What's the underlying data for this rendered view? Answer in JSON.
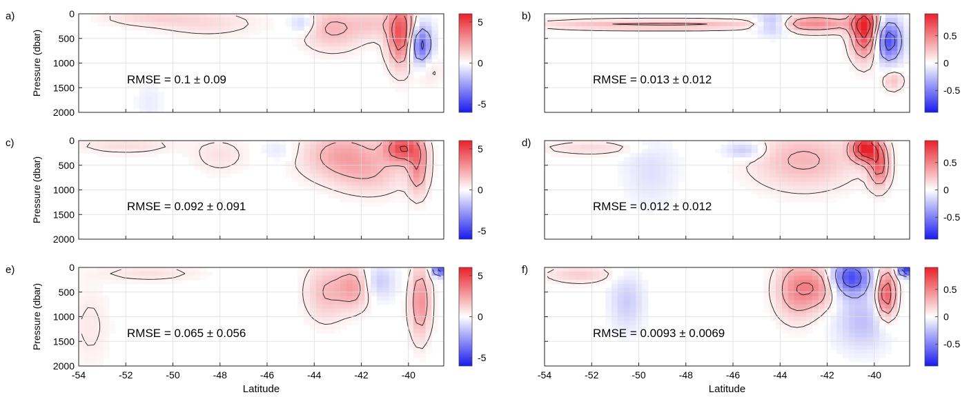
{
  "colors": {
    "positive": "#e8202a",
    "negative": "#1a1aef",
    "neutral": "#ffffff",
    "contour": "#1a1a1a",
    "grid": "#dcdcdc"
  },
  "chart_data": [
    {
      "type": "heatmap",
      "panel_label": "a)",
      "ylabel": "Pressure (dbar)",
      "xlabel": "",
      "xlim": [
        -54,
        -38.5
      ],
      "ylim": [
        2000,
        0
      ],
      "yticks": [
        "0",
        "500",
        "1000",
        "1500",
        "2000"
      ],
      "xticks": [],
      "annotation": "RMSE = 0.1 ± 0.09",
      "colorbar": {
        "range": [
          -6,
          6
        ],
        "ticks": [
          "5",
          "0",
          "-5"
        ]
      },
      "features": [
        {
          "lat": -51.0,
          "p": 80,
          "sig_lat": 1.4,
          "sig_p": 120,
          "value": 1.0
        },
        {
          "lat": -48.5,
          "p": 200,
          "sig_lat": 1.5,
          "sig_p": 180,
          "value": 0.9
        },
        {
          "lat": -44.5,
          "p": 200,
          "sig_lat": 0.4,
          "sig_p": 150,
          "value": -1.5
        },
        {
          "lat": -43.2,
          "p": 300,
          "sig_lat": 0.9,
          "sig_p": 300,
          "value": 2.0
        },
        {
          "lat": -41.5,
          "p": 200,
          "sig_lat": 0.6,
          "sig_p": 200,
          "value": 1.2
        },
        {
          "lat": -40.3,
          "p": 400,
          "sig_lat": 0.4,
          "sig_p": 450,
          "value": 4.8
        },
        {
          "lat": -39.5,
          "p": 650,
          "sig_lat": 0.35,
          "sig_p": 300,
          "value": -4.5
        },
        {
          "lat": -39.2,
          "p": 1100,
          "sig_lat": 0.4,
          "sig_p": 250,
          "value": 1.0
        },
        {
          "lat": -51.0,
          "p": 1800,
          "sig_lat": 0.4,
          "sig_p": 300,
          "value": -0.5
        }
      ]
    },
    {
      "type": "heatmap",
      "panel_label": "b)",
      "ylabel": "",
      "xlabel": "",
      "xlim": [
        -54,
        -38.5
      ],
      "ylim": [
        2000,
        0
      ],
      "yticks": [],
      "xticks": [],
      "annotation": "RMSE = 0.013 ± 0.012",
      "colorbar": {
        "range": [
          -0.9,
          0.9
        ],
        "ticks": [
          "0.5",
          "0",
          "-0.5"
        ]
      },
      "features": [
        {
          "lat": -51.0,
          "p": 220,
          "sig_lat": 2.5,
          "sig_p": 70,
          "value": 0.25
        },
        {
          "lat": -47.0,
          "p": 220,
          "sig_lat": 2.0,
          "sig_p": 70,
          "value": 0.2
        },
        {
          "lat": -44.3,
          "p": 200,
          "sig_lat": 0.5,
          "sig_p": 150,
          "value": -0.4
        },
        {
          "lat": -42.5,
          "p": 200,
          "sig_lat": 1.2,
          "sig_p": 120,
          "value": 0.45
        },
        {
          "lat": -40.4,
          "p": 300,
          "sig_lat": 0.4,
          "sig_p": 400,
          "value": 0.85
        },
        {
          "lat": -39.4,
          "p": 550,
          "sig_lat": 0.4,
          "sig_p": 300,
          "value": -0.7
        },
        {
          "lat": -39.2,
          "p": 1350,
          "sig_lat": 0.3,
          "sig_p": 150,
          "value": 0.25
        }
      ]
    },
    {
      "type": "heatmap",
      "panel_label": "c)",
      "ylabel": "Pressure (dbar)",
      "xlabel": "",
      "xlim": [
        -54,
        -38.5
      ],
      "ylim": [
        2000,
        0
      ],
      "yticks": [
        "0",
        "500",
        "1000",
        "1500",
        "2000"
      ],
      "xticks": [],
      "annotation": "RMSE = 0.092 ± 0.091",
      "colorbar": {
        "range": [
          -6,
          6
        ],
        "ticks": [
          "5",
          "0",
          "-5"
        ]
      },
      "features": [
        {
          "lat": -52.0,
          "p": 100,
          "sig_lat": 1.5,
          "sig_p": 120,
          "value": 0.9
        },
        {
          "lat": -48.0,
          "p": 300,
          "sig_lat": 0.8,
          "sig_p": 250,
          "value": 0.8
        },
        {
          "lat": -45.5,
          "p": 200,
          "sig_lat": 0.5,
          "sig_p": 150,
          "value": -0.7
        },
        {
          "lat": -42.8,
          "p": 300,
          "sig_lat": 1.2,
          "sig_p": 350,
          "value": 2.4
        },
        {
          "lat": -41.5,
          "p": 700,
          "sig_lat": 1.0,
          "sig_p": 300,
          "value": 1.2
        },
        {
          "lat": -40.3,
          "p": 150,
          "sig_lat": 0.5,
          "sig_p": 200,
          "value": 4.5
        },
        {
          "lat": -39.6,
          "p": 500,
          "sig_lat": 0.3,
          "sig_p": 400,
          "value": 3.0
        }
      ]
    },
    {
      "type": "heatmap",
      "panel_label": "d)",
      "ylabel": "",
      "xlabel": "",
      "xlim": [
        -54,
        -38.5
      ],
      "ylim": [
        2000,
        0
      ],
      "yticks": [],
      "xticks": [],
      "annotation": "RMSE = 0.012 ± 0.012",
      "colorbar": {
        "range": [
          -0.9,
          0.9
        ],
        "ticks": [
          "0.5",
          "0",
          "-0.5"
        ]
      },
      "features": [
        {
          "lat": -52.0,
          "p": 150,
          "sig_lat": 1.5,
          "sig_p": 100,
          "value": 0.15
        },
        {
          "lat": -49.5,
          "p": 600,
          "sig_lat": 0.8,
          "sig_p": 500,
          "value": -0.12
        },
        {
          "lat": -45.5,
          "p": 200,
          "sig_lat": 0.6,
          "sig_p": 120,
          "value": -0.25
        },
        {
          "lat": -43.0,
          "p": 400,
          "sig_lat": 1.5,
          "sig_p": 400,
          "value": 0.3
        },
        {
          "lat": -40.4,
          "p": 150,
          "sig_lat": 0.4,
          "sig_p": 200,
          "value": 0.85
        },
        {
          "lat": -39.8,
          "p": 500,
          "sig_lat": 0.3,
          "sig_p": 300,
          "value": 0.6
        }
      ]
    },
    {
      "type": "heatmap",
      "panel_label": "e)",
      "ylabel": "Pressure (dbar)",
      "xlabel": "Latitude",
      "xlim": [
        -54,
        -38.5
      ],
      "ylim": [
        2000,
        0
      ],
      "yticks": [
        "0",
        "500",
        "1000",
        "1500",
        "2000"
      ],
      "xticks": [
        "-54",
        "-52",
        "-50",
        "-48",
        "-46",
        "-44",
        "-42",
        "-40"
      ],
      "annotation": "RMSE = 0.065 ± 0.056",
      "colorbar": {
        "range": [
          -6,
          6
        ],
        "ticks": [
          "5",
          "0",
          "-5"
        ]
      },
      "features": [
        {
          "lat": -53.5,
          "p": 1200,
          "sig_lat": 0.6,
          "sig_p": 600,
          "value": 0.6
        },
        {
          "lat": -51.0,
          "p": 120,
          "sig_lat": 1.5,
          "sig_p": 120,
          "value": 0.8
        },
        {
          "lat": -43.5,
          "p": 500,
          "sig_lat": 0.6,
          "sig_p": 400,
          "value": 1.8
        },
        {
          "lat": -42.3,
          "p": 400,
          "sig_lat": 0.5,
          "sig_p": 300,
          "value": 2.5
        },
        {
          "lat": -41.3,
          "p": 300,
          "sig_lat": 0.5,
          "sig_p": 250,
          "value": -1.5
        },
        {
          "lat": -39.5,
          "p": 700,
          "sig_lat": 0.3,
          "sig_p": 500,
          "value": 3.0
        },
        {
          "lat": -38.7,
          "p": 50,
          "sig_lat": 0.2,
          "sig_p": 100,
          "value": -4.5
        }
      ]
    },
    {
      "type": "heatmap",
      "panel_label": "f)",
      "ylabel": "",
      "xlabel": "Latitude",
      "xlim": [
        -54,
        -38.5
      ],
      "ylim": [
        2000,
        0
      ],
      "yticks": [],
      "xticks": [
        "-54",
        "-52",
        "-50",
        "-48",
        "-46",
        "-44",
        "-42",
        "-40"
      ],
      "annotation": "RMSE = 0.0093 ± 0.0069",
      "colorbar": {
        "range": [
          -0.9,
          0.9
        ],
        "ticks": [
          "0.5",
          "0",
          "-0.5"
        ]
      },
      "features": [
        {
          "lat": -52.5,
          "p": 150,
          "sig_lat": 1.0,
          "sig_p": 120,
          "value": 0.2
        },
        {
          "lat": -50.5,
          "p": 700,
          "sig_lat": 0.5,
          "sig_p": 400,
          "value": -0.2
        },
        {
          "lat": -43.3,
          "p": 450,
          "sig_lat": 0.6,
          "sig_p": 400,
          "value": 0.45
        },
        {
          "lat": -42.3,
          "p": 400,
          "sig_lat": 0.5,
          "sig_p": 300,
          "value": 0.35
        },
        {
          "lat": -41.0,
          "p": 200,
          "sig_lat": 0.6,
          "sig_p": 250,
          "value": -0.7
        },
        {
          "lat": -40.5,
          "p": 1100,
          "sig_lat": 0.8,
          "sig_p": 400,
          "value": -0.25
        },
        {
          "lat": -39.5,
          "p": 550,
          "sig_lat": 0.3,
          "sig_p": 350,
          "value": 0.7
        },
        {
          "lat": -38.7,
          "p": 50,
          "sig_lat": 0.2,
          "sig_p": 100,
          "value": -0.8
        }
      ]
    }
  ]
}
